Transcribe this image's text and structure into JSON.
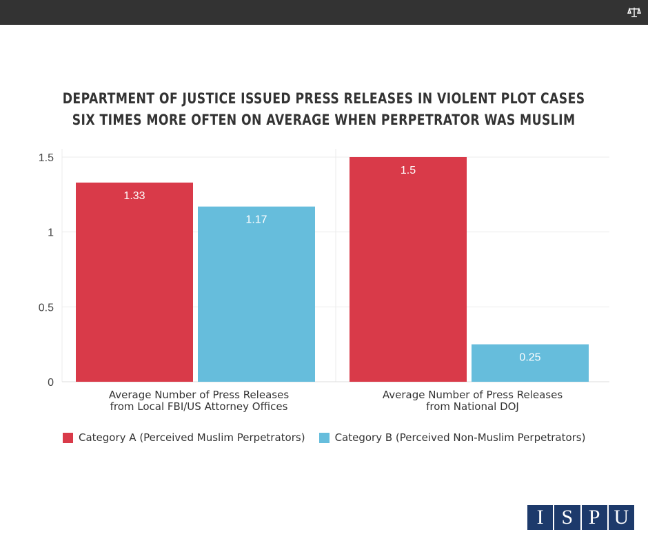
{
  "header": {
    "icon": "scales-icon"
  },
  "title_lines": [
    "DEPARTMENT OF JUSTICE ISSUED PRESS RELEASES IN VIOLENT PLOT CASES",
    "SIX TIMES MORE OFTEN ON AVERAGE WHEN PERPETRATOR WAS MUSLIM"
  ],
  "chart_data": {
    "type": "bar",
    "categories": [
      [
        "Average Number of Press Releases",
        "from Local FBI/US Attorney Offices"
      ],
      [
        "Average Number of Press Releases",
        "from National DOJ"
      ]
    ],
    "series": [
      {
        "name": "Category A (Perceived Muslim Perpetrators)",
        "values": [
          1.33,
          1.5
        ],
        "labels": [
          "1.33",
          "1.5"
        ],
        "color": "#d93a49"
      },
      {
        "name": "Category B (Perceived Non-Muslim Perpetrators)",
        "values": [
          1.17,
          0.25
        ],
        "labels": [
          "1.17",
          "0.25"
        ],
        "color": "#66bddc"
      }
    ],
    "ylim": [
      0,
      1.5
    ],
    "yticks": [
      0,
      0.5,
      1,
      1.5
    ],
    "ytick_labels": [
      "0",
      "0.5",
      "1",
      "1.5"
    ],
    "grid": true,
    "legend": "bottom"
  },
  "logo": {
    "letters": [
      "I",
      "S",
      "P",
      "U"
    ],
    "color": "#1d3a6b"
  }
}
